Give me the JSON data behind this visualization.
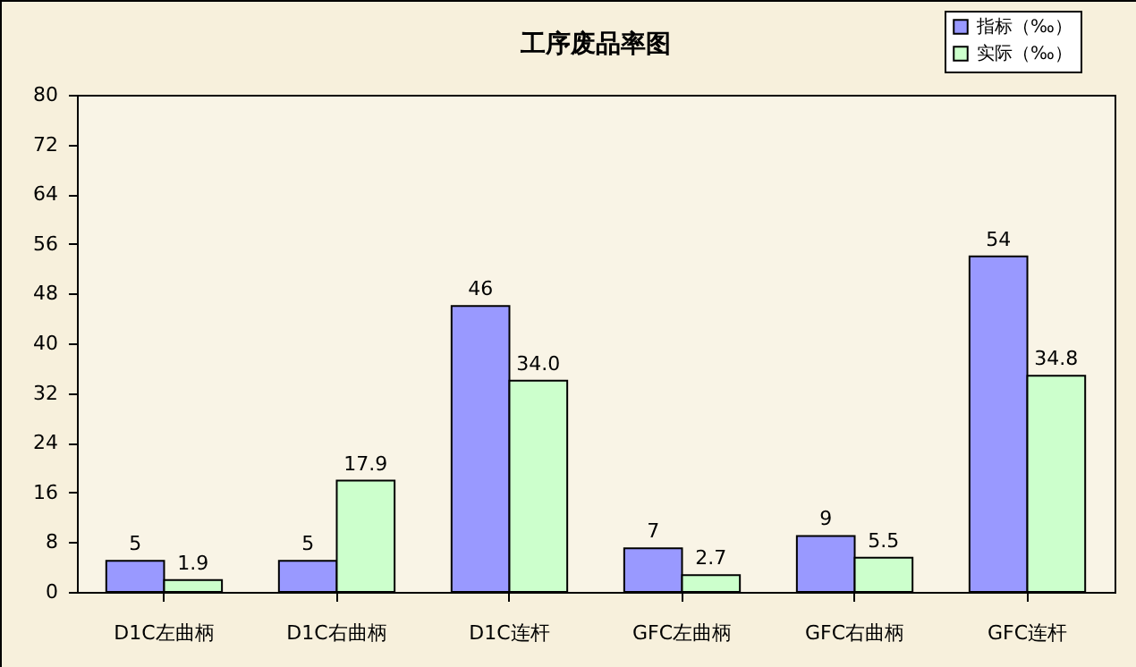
{
  "chart_data": {
    "type": "bar",
    "title": "工序废品率图",
    "categories": [
      "D1C左曲柄",
      "D1C右曲柄",
      "D1C连杆",
      "GFC左曲柄",
      "GFC右曲柄",
      "GFC连杆"
    ],
    "series": [
      {
        "name": "指标（‰）",
        "color": "#9999ff",
        "values": [
          5,
          5,
          46,
          7,
          9,
          54
        ],
        "value_labels": [
          "5",
          "5",
          "46",
          "7",
          "9",
          "54"
        ]
      },
      {
        "name": "实际（‰）",
        "color": "#ccffcc",
        "values": [
          1.9,
          17.9,
          34.0,
          2.7,
          5.5,
          34.8
        ],
        "value_labels": [
          "1.9",
          "17.9",
          "34.0",
          "2.7",
          "5.5",
          "34.8"
        ]
      }
    ],
    "ylim": [
      0,
      80
    ],
    "yticks": [
      0,
      8,
      16,
      24,
      32,
      40,
      48,
      56,
      64,
      72,
      80
    ],
    "grid": false,
    "legend": "top right"
  }
}
